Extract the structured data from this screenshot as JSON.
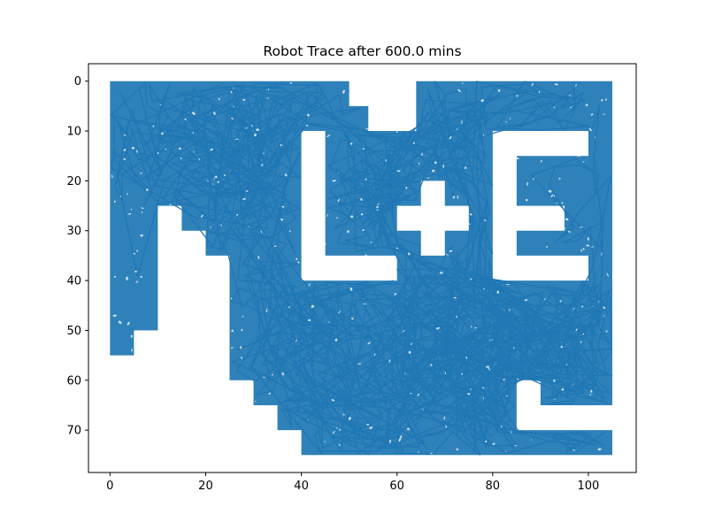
{
  "chart_data": {
    "type": "line",
    "title": "Robot Trace after 600.0 mins",
    "xlabel": "",
    "ylabel": "",
    "xlim": [
      -4.5,
      110.0
    ],
    "ylim": [
      78.5,
      -3.5
    ],
    "y_inverted": true,
    "x_ticks": [
      0,
      20,
      40,
      60,
      80,
      100
    ],
    "y_ticks": [
      0,
      10,
      20,
      30,
      40,
      50,
      60,
      70
    ],
    "grid": false,
    "series": [
      {
        "name": "",
        "color": "#1f77b4",
        "points_estimated": 1400
      }
    ],
    "region_outline": [
      [
        0,
        0
      ],
      [
        50,
        0
      ],
      [
        50,
        5
      ],
      [
        54,
        5
      ],
      [
        54,
        0
      ],
      [
        60,
        0
      ],
      [
        60,
        5
      ],
      [
        64,
        5
      ],
      [
        64,
        0
      ],
      [
        105,
        0
      ],
      [
        105,
        75
      ],
      [
        40,
        75
      ],
      [
        40,
        70
      ],
      [
        35,
        70
      ],
      [
        35,
        65
      ],
      [
        30,
        65
      ],
      [
        30,
        60
      ],
      [
        25,
        60
      ],
      [
        25,
        35
      ],
      [
        20,
        35
      ],
      [
        20,
        30
      ],
      [
        15,
        30
      ],
      [
        15,
        25
      ],
      [
        10,
        25
      ],
      [
        10,
        50
      ],
      [
        5,
        50
      ],
      [
        5,
        55
      ],
      [
        0,
        55
      ]
    ],
    "obstacles": [
      {
        "name": "L",
        "polygon": [
          [
            40,
            10
          ],
          [
            45,
            10
          ],
          [
            45,
            35
          ],
          [
            60,
            35
          ],
          [
            60,
            40
          ],
          [
            40,
            40
          ]
        ]
      },
      {
        "name": "+",
        "polygon": [
          [
            65,
            20
          ],
          [
            70,
            20
          ],
          [
            70,
            25
          ],
          [
            75,
            25
          ],
          [
            75,
            30
          ],
          [
            70,
            30
          ],
          [
            70,
            35
          ],
          [
            65,
            35
          ],
          [
            65,
            30
          ],
          [
            60,
            30
          ],
          [
            60,
            25
          ],
          [
            65,
            25
          ]
        ]
      },
      {
        "name": "E",
        "polygon": [
          [
            80,
            10
          ],
          [
            100,
            10
          ],
          [
            100,
            15
          ],
          [
            85,
            15
          ],
          [
            85,
            25
          ],
          [
            95,
            25
          ],
          [
            95,
            30
          ],
          [
            85,
            30
          ],
          [
            85,
            35
          ],
          [
            100,
            35
          ],
          [
            100,
            40
          ],
          [
            80,
            40
          ]
        ]
      },
      {
        "name": "notch-bottom-right",
        "polygon": [
          [
            85,
            60
          ],
          [
            90,
            60
          ],
          [
            90,
            65
          ],
          [
            105,
            65
          ],
          [
            105,
            70
          ],
          [
            85,
            70
          ]
        ]
      },
      {
        "name": "notch-top",
        "polygon": [
          [
            54,
            0
          ],
          [
            60,
            0
          ],
          [
            60,
            5
          ],
          [
            64,
            5
          ],
          [
            64,
            10
          ],
          [
            54,
            10
          ]
        ]
      }
    ]
  }
}
